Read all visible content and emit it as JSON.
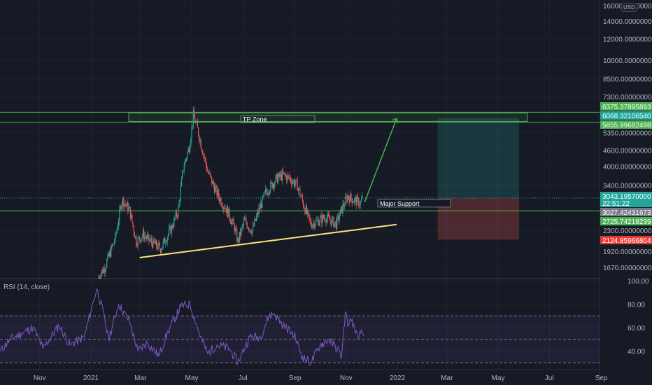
{
  "chart_data": [
    {
      "type": "candlestick",
      "scale": "log",
      "currency": "USD",
      "ylim": [
        1555,
        16000
      ],
      "y_ticks": [
        "16000.00000000",
        "14000.00000000",
        "12000.00000000",
        "10000.00000000",
        "8500.00000000",
        "7300.00000000",
        "5350.00000000",
        "4600.00000000",
        "4000.00000000",
        "3400.00000000",
        "2300.00000000",
        "1920.00000000",
        "1670.00000000"
      ],
      "y_tick_values": [
        16000,
        14000,
        12000,
        10000,
        8500,
        7300,
        5350,
        4600,
        4000,
        3400,
        2300,
        1920,
        1670
      ],
      "x_ticks": [
        "Nov",
        "2021",
        "Mar",
        "May",
        "Jul",
        "Sep",
        "Nov",
        "2022",
        "Mar",
        "May",
        "Jul",
        "Sep"
      ],
      "x_tick_dates": [
        "2020-11-01",
        "2021-01-01",
        "2021-03-01",
        "2021-05-01",
        "2021-07-01",
        "2021-09-01",
        "2021-11-01",
        "2022-01-01",
        "2022-03-01",
        "2022-05-01",
        "2022-07-01",
        "2022-09-01"
      ],
      "grid": true,
      "colors": {
        "up": "#26a69a",
        "down": "#ef5350",
        "background": "#161a25"
      },
      "price_path": [
        [
          "2021-01-09",
          1518
        ],
        [
          "2021-01-18",
          1692
        ],
        [
          "2021-01-30",
          2154
        ],
        [
          "2021-02-07",
          3003
        ],
        [
          "2021-02-16",
          2742
        ],
        [
          "2021-02-24",
          2090
        ],
        [
          "2021-03-04",
          2219
        ],
        [
          "2021-03-13",
          2090
        ],
        [
          "2021-03-25",
          1968
        ],
        [
          "2021-04-07",
          2356
        ],
        [
          "2021-04-15",
          2742
        ],
        [
          "2021-04-21",
          3943
        ],
        [
          "2021-04-28",
          4725
        ],
        [
          "2021-05-03",
          6200
        ],
        [
          "2021-05-08",
          5497
        ],
        [
          "2021-05-14",
          4585
        ],
        [
          "2021-05-20",
          3823
        ],
        [
          "2021-05-27",
          3385
        ],
        [
          "2021-06-04",
          3003
        ],
        [
          "2021-06-12",
          2742
        ],
        [
          "2021-06-21",
          2356
        ],
        [
          "2021-06-25",
          2090
        ],
        [
          "2021-07-03",
          2503
        ],
        [
          "2021-07-12",
          2290
        ],
        [
          "2021-07-20",
          2742
        ],
        [
          "2021-07-28",
          3190
        ],
        [
          "2021-08-10",
          3596
        ],
        [
          "2021-08-18",
          3709
        ],
        [
          "2021-08-26",
          3596
        ],
        [
          "2021-09-04",
          3385
        ],
        [
          "2021-09-12",
          2824
        ],
        [
          "2021-09-20",
          2430
        ],
        [
          "2021-09-29",
          2503
        ],
        [
          "2021-10-07",
          2582
        ],
        [
          "2021-10-20",
          2430
        ],
        [
          "2021-10-28",
          2824
        ],
        [
          "2021-11-03",
          3095
        ],
        [
          "2021-11-09",
          3003
        ],
        [
          "2021-11-18",
          2912
        ],
        [
          "2021-11-20",
          3039
        ]
      ],
      "price_tags": [
        {
          "label": "6375.37895893",
          "color": "#4caf50"
        },
        {
          "label": "6068.32106540",
          "color": "#22a69a"
        },
        {
          "label": "5855.99682498",
          "color": "#4caf50"
        },
        {
          "label": "3043.19570000",
          "sub": "22:51:22",
          "color": "#22a69a"
        },
        {
          "label": "3027.42431673",
          "color": "#787b86"
        },
        {
          "label": "2725.74218239",
          "color": "#4caf50"
        },
        {
          "label": "2124.85966804",
          "color": "#e53935",
          "text_color": "#ffeb3b"
        }
      ],
      "levels": {
        "tp_top": 6375.37895893,
        "target": 6068.3210654,
        "tp_bottom": 5855.99682498,
        "last": 3043.1957,
        "entry": 3027.42431673,
        "support": 2725.74218239,
        "stop": 2124.85966804
      },
      "annotations": {
        "tp_zone_label": "TP Zone",
        "support_label": "Major Support",
        "trendline": [
          [
            "2021-02-28",
            1820
          ],
          [
            "2021-12-31",
            2420
          ]
        ],
        "arrow": [
          [
            "2021-11-23",
            2935
          ],
          [
            "2021-12-31",
            6030
          ]
        ],
        "position_box": {
          "start": "2022-02-18",
          "end": "2022-05-26"
        }
      }
    },
    {
      "type": "line",
      "title": "RSI (14, close)",
      "ylim": [
        25,
        100
      ],
      "y_ticks": [
        "100.00",
        "80.00",
        "60.00",
        "40.00"
      ],
      "y_tick_values": [
        100,
        80,
        60,
        40
      ],
      "bands": [
        70,
        50,
        30
      ],
      "colors": {
        "line": "#7e57c2",
        "band_fill": "#7e57c2"
      },
      "points": [
        [
          "2020-09-15",
          40
        ],
        [
          "2020-09-27",
          50
        ],
        [
          "2020-10-10",
          55
        ],
        [
          "2020-10-24",
          60
        ],
        [
          "2020-11-05",
          42
        ],
        [
          "2020-11-24",
          62
        ],
        [
          "2020-12-07",
          45
        ],
        [
          "2020-12-24",
          52
        ],
        [
          "2021-01-03",
          80
        ],
        [
          "2021-01-08",
          93
        ],
        [
          "2021-01-16",
          72
        ],
        [
          "2021-01-22",
          50
        ],
        [
          "2021-02-03",
          80
        ],
        [
          "2021-02-16",
          65
        ],
        [
          "2021-02-26",
          40
        ],
        [
          "2021-03-09",
          47
        ],
        [
          "2021-03-23",
          36
        ],
        [
          "2021-04-03",
          57
        ],
        [
          "2021-04-18",
          78
        ],
        [
          "2021-04-29",
          80
        ],
        [
          "2021-05-10",
          55
        ],
        [
          "2021-05-20",
          38
        ],
        [
          "2021-05-31",
          45
        ],
        [
          "2021-06-15",
          42
        ],
        [
          "2021-06-25",
          30
        ],
        [
          "2021-07-09",
          52
        ],
        [
          "2021-07-22",
          52
        ],
        [
          "2021-08-01",
          70
        ],
        [
          "2021-08-07",
          72
        ],
        [
          "2021-08-18",
          62
        ],
        [
          "2021-08-31",
          54
        ],
        [
          "2021-09-10",
          35
        ],
        [
          "2021-09-20",
          30
        ],
        [
          "2021-10-01",
          45
        ],
        [
          "2021-10-11",
          50
        ],
        [
          "2021-10-24",
          40
        ],
        [
          "2021-10-26",
          33
        ],
        [
          "2021-10-31",
          73
        ],
        [
          "2021-11-04",
          62
        ],
        [
          "2021-11-08",
          67
        ],
        [
          "2021-11-12",
          55
        ],
        [
          "2021-11-16",
          50
        ],
        [
          "2021-11-19",
          58
        ],
        [
          "2021-11-22",
          53
        ]
      ]
    }
  ]
}
